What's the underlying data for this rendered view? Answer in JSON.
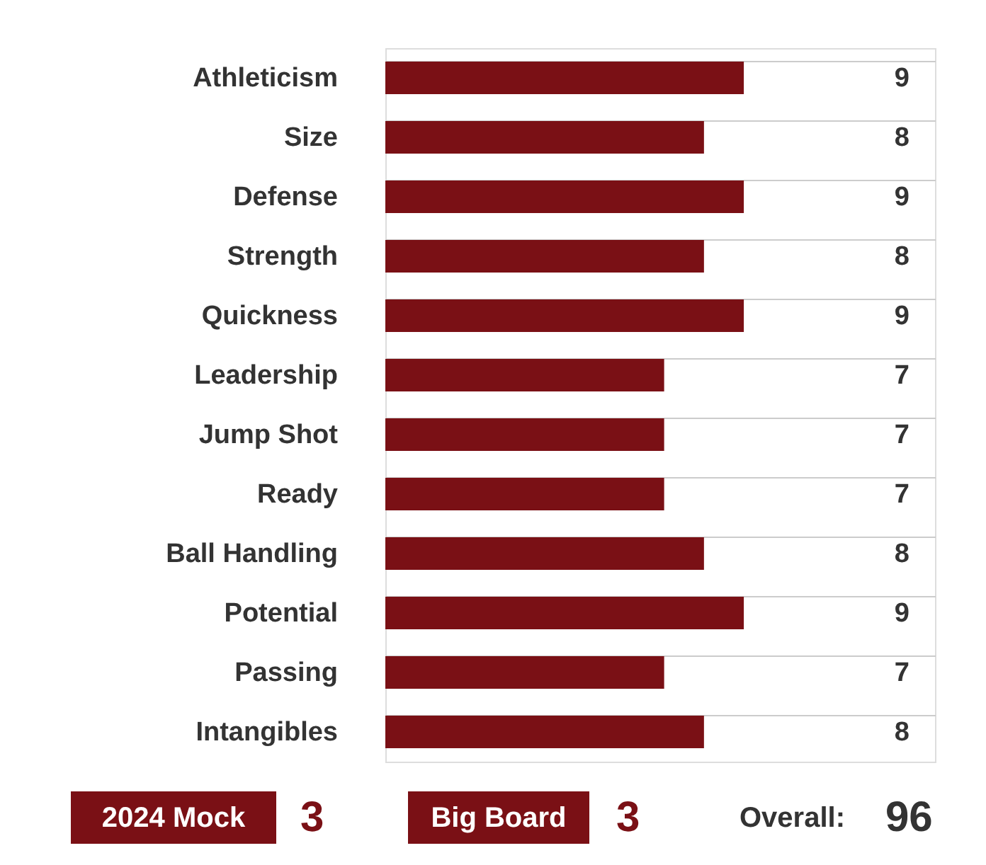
{
  "chart_data": {
    "type": "bar",
    "orientation": "horizontal",
    "categories": [
      "Athleticism",
      "Size",
      "Defense",
      "Strength",
      "Quickness",
      "Leadership",
      "Jump Shot",
      "Ready",
      "Ball Handling",
      "Potential",
      "Passing",
      "Intangibles"
    ],
    "values": [
      9,
      8,
      9,
      8,
      9,
      7,
      7,
      7,
      8,
      9,
      7,
      8
    ],
    "color": "#7a1015",
    "xlim": [
      0,
      13.8
    ],
    "tick_labels": "y",
    "data_labels": true,
    "grid": "y",
    "annotations": [
      "2024 Mock",
      "3",
      "Big Board",
      "3",
      "Overall:",
      "96"
    ]
  }
}
